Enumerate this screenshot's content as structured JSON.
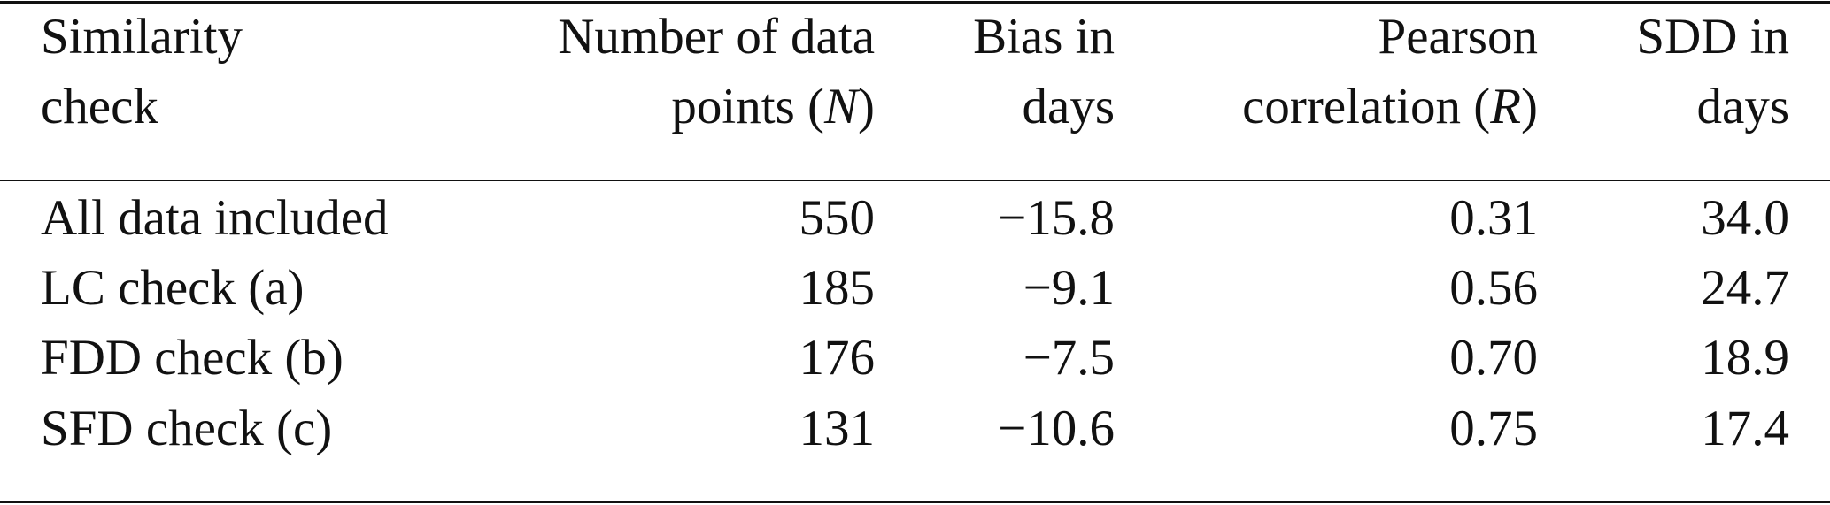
{
  "table": {
    "header": [
      [
        [
          {
            "text": "Similarity"
          }
        ],
        [
          {
            "text": "check"
          }
        ]
      ],
      [
        [
          {
            "text": "Number of data"
          }
        ],
        [
          {
            "text": "points ("
          },
          {
            "text": "N",
            "italic": true
          },
          {
            "text": ")"
          }
        ]
      ],
      [
        [
          {
            "text": "Bias in"
          }
        ],
        [
          {
            "text": "days"
          }
        ]
      ],
      [
        [
          {
            "text": "Pearson"
          }
        ],
        [
          {
            "text": "correlation ("
          },
          {
            "text": "R",
            "italic": true
          },
          {
            "text": ")"
          }
        ]
      ],
      [
        [
          {
            "text": "SDD in"
          }
        ],
        [
          {
            "text": "days"
          }
        ]
      ]
    ],
    "rows": [
      [
        "All data included",
        "550",
        "−15.8",
        "0.31",
        "34.0"
      ],
      [
        "LC check (a)",
        "185",
        "−9.1",
        "0.56",
        "24.7"
      ],
      [
        "FDD check (b)",
        "176",
        "−7.5",
        "0.70",
        "18.9"
      ],
      [
        "SFD check (c)",
        "131",
        "−10.6",
        "0.75",
        "17.4"
      ]
    ]
  }
}
